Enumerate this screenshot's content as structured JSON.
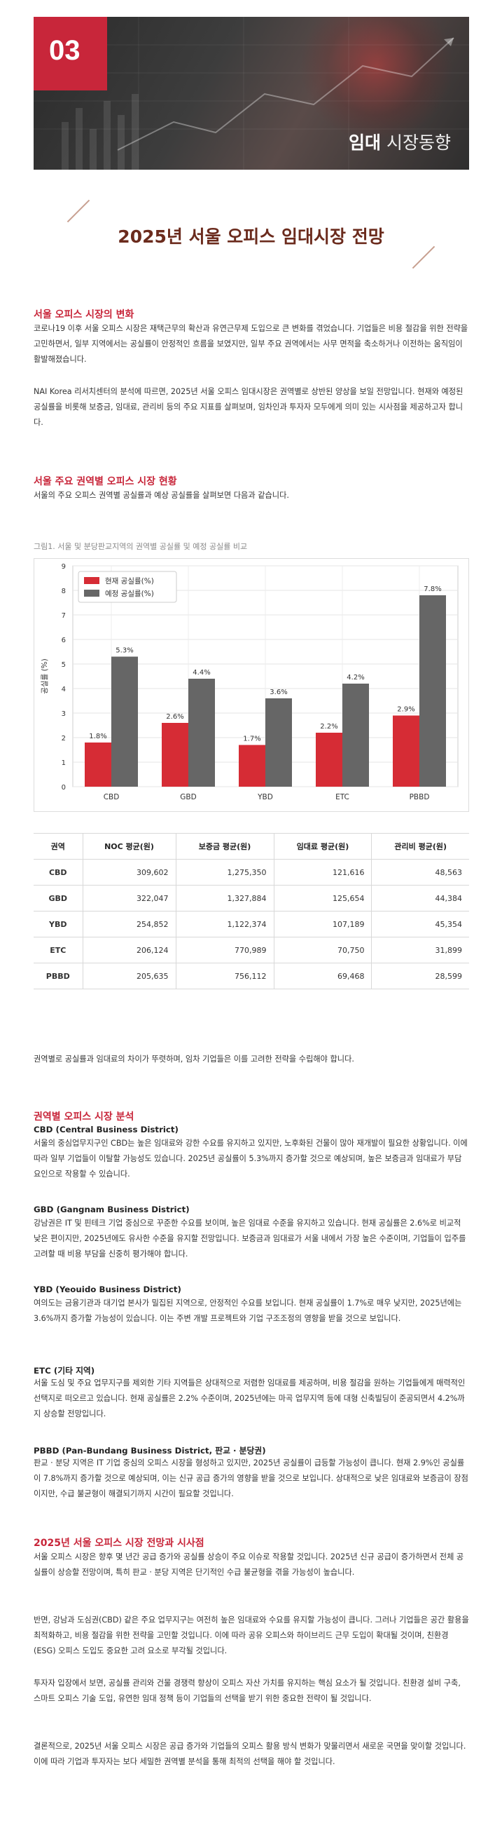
{
  "banner": {
    "number": "03",
    "title_bold": "임대",
    "title_light": " 시장동향"
  },
  "main_title": "2025년 서울 오피스 임대시장 전망",
  "section1": {
    "heading": "서울 오피스 시장의 변화",
    "p1": "코로나19 이후 서울 오피스 시장은 재택근무의 확산과 유연근무제 도입으로 큰 변화를 겪었습니다. 기업들은 비용 절감을 위한 전략을 고민하면서, 일부 지역에서는 공실률이 안정적인 흐름을 보였지만, 일부 주요 권역에서는 사무 면적을 축소하거나 이전하는 움직임이 활발해졌습니다.",
    "p2": "NAI Korea 리서치센터의 분석에 따르면, 2025년 서울 오피스 임대시장은 권역별로 상반된 양상을 보일 전망입니다. 현재와 예정된 공실률을 비롯해 보증금, 임대료, 관리비 등의 주요 지표를 살펴보며, 임차인과 투자자 모두에게 의미 있는 시사점을 제공하고자 합니다."
  },
  "section2": {
    "heading": "서울 주요 권역별 오피스 시장 현황",
    "intro": "서울의 주요 오피스 권역별 공실률과 예상 공실률을 살펴보면 다음과 같습니다."
  },
  "chart_caption": "그림1. 서울 및 분당판교지역의 권역별 공실률 및 예정 공실률 비교",
  "chart_data": {
    "type": "bar",
    "categories": [
      "CBD",
      "GBD",
      "YBD",
      "ETC",
      "PBBD"
    ],
    "series": [
      {
        "name": "현재 공실률(%)",
        "values": [
          1.8,
          2.6,
          1.7,
          2.2,
          2.9
        ],
        "color": "#d62c35"
      },
      {
        "name": "예정 공실률(%)",
        "values": [
          5.3,
          4.4,
          3.6,
          4.2,
          7.8
        ],
        "color": "#666666"
      }
    ],
    "data_labels": {
      "current": [
        "1.8%",
        "2.6%",
        "1.7%",
        "2.2%",
        "2.9%"
      ],
      "planned": [
        "5.3%",
        "4.4%",
        "3.6%",
        "4.2%",
        "7.8%"
      ]
    },
    "ylabel": "공실률 (%)",
    "ylim": [
      0,
      9
    ],
    "yticks": [
      "0",
      "1",
      "2",
      "3",
      "4",
      "5",
      "6",
      "7",
      "8",
      "9"
    ],
    "grid": true,
    "legend": "top-left"
  },
  "table": {
    "headers": [
      "권역",
      "NOC 평균(원)",
      "보증금 평균(원)",
      "임대료 평균(원)",
      "관리비 평균(원)"
    ],
    "rows": [
      [
        "CBD",
        "309,602",
        "1,275,350",
        "121,616",
        "48,563"
      ],
      [
        "GBD",
        "322,047",
        "1,327,884",
        "125,654",
        "44,384"
      ],
      [
        "YBD",
        "254,852",
        "1,122,374",
        "107,189",
        "45,354"
      ],
      [
        "ETC",
        "206,124",
        "770,989",
        "70,750",
        "31,899"
      ],
      [
        "PBBD",
        "205,635",
        "756,112",
        "69,468",
        "28,599"
      ]
    ]
  },
  "after_table": "권역별로 공실률과 임대료의 차이가 뚜렷하며, 임차 기업들은 이를 고려한 전략을 수립해야 합니다.",
  "section3": {
    "heading": "권역별 오피스 시장 분석",
    "cbd_h": "CBD (Central Business District)",
    "cbd_p": "서울의 중심업무지구인 CBD는 높은 임대료와 강한 수요를 유지하고 있지만, 노후화된 건물이 많아 재개발이 필요한 상황입니다. 이에 따라 일부 기업들이 이탈할 가능성도 있습니다. 2025년 공실률이 5.3%까지 증가할 것으로 예상되며, 높은 보증금과 임대료가 부담 요인으로 작용할 수 있습니다.",
    "gbd_h": "GBD (Gangnam Business District)",
    "gbd_p": "강남권은 IT 및 핀테크 기업 중심으로 꾸준한 수요를 보이며, 높은 임대료 수준을 유지하고 있습니다. 현재 공실률은 2.6%로 비교적 낮은 편이지만, 2025년에도 유사한 수준을 유지할 전망입니다. 보증금과 임대료가 서울 내에서 가장 높은 수준이며, 기업들이 입주를 고려할 때 비용 부담을 신중히 평가해야 합니다.",
    "ybd_h": "YBD (Yeouido Business District)",
    "ybd_p": "여의도는 금융기관과 대기업 본사가 밀집된 지역으로, 안정적인 수요를 보입니다. 현재 공실률이 1.7%로 매우 낮지만, 2025년에는 3.6%까지 증가할 가능성이 있습니다. 이는 주변 개발 프로젝트와 기업 구조조정의 영향을 받을 것으로 보입니다.",
    "etc_h": "ETC (기타 지역)",
    "etc_p": "서울 도심 및 주요 업무지구를 제외한 기타 지역들은 상대적으로 저렴한 임대료를 제공하며, 비용 절감을 원하는 기업들에게 매력적인 선택지로 떠오르고 있습니다. 현재 공실률은 2.2% 수준이며, 2025년에는 마곡 업무지역 등에 대형 신축빌딩이 준공되면서 4.2%까지 상승할 전망입니다.",
    "pbbd_h": "PBBD (Pan-Bundang Business District, 판교 · 분당권)",
    "pbbd_p": "판교 · 분당 지역은 IT 기업 중심의 오피스 시장을 형성하고 있지만, 2025년 공실률이 급등할 가능성이 큽니다. 현재 2.9%인 공실률이 7.8%까지 증가할 것으로 예상되며, 이는 신규 공급 증가의 영향을 받을 것으로 보입니다. 상대적으로 낮은 임대료와 보증금이 장점이지만, 수급 불균형이 해결되기까지 시간이 필요할 것입니다."
  },
  "section4": {
    "heading": "2025년 서울 오피스 시장 전망과 시사점",
    "p1": "서울 오피스 시장은 향후 몇 년간 공급 증가와 공실률 상승이 주요 이슈로 작용할 것입니다. 2025년 신규 공급이 증가하면서 전체 공실률이 상승할 전망이며, 특히 판교 · 분당 지역은 단기적인 수급 불균형을 겪을 가능성이 높습니다.",
    "p2": "반면, 강남과 도심권(CBD) 같은 주요 업무지구는 여전히 높은 임대료와 수요를 유지할 가능성이 큽니다. 그러나 기업들은 공간 활용을 최적화하고, 비용 절감을 위한 전략을 고민할 것입니다. 이에 따라 공유 오피스와 하이브리드 근무 도입이 확대될 것이며, 친환경(ESG) 오피스 도입도 중요한 고려 요소로 부각될 것입니다.",
    "p3": "투자자 입장에서 보면, 공실률 관리와 건물 경쟁력 향상이 오피스 자산 가치를 유지하는 핵심 요소가 될 것입니다. 친환경 설비 구축, 스마트 오피스 기술 도입, 유연한 임대 정책 등이 기업들의 선택을 받기 위한 중요한 전략이 될 것입니다.",
    "p4": "결론적으로, 2025년 서울 오피스 시장은 공급 증가와 기업들의 오피스 활용 방식 변화가 맞물리면서 새로운 국면을 맞이할 것입니다. 이에 따라 기업과 투자자는 보다 세밀한 권역별 분석을 통해 최적의 선택을 해야 할 것입니다."
  }
}
